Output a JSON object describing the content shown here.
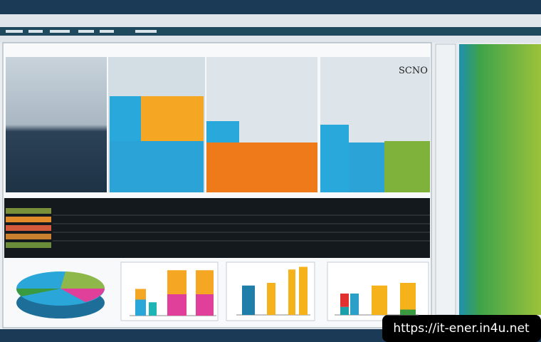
{
  "panel": {
    "badge": "SCNO"
  },
  "watermark": "https://it-ener.in4u.net",
  "mini_charts": [
    {
      "bars": [
        [
          {
            "value": 30,
            "color": "#2aa7d8"
          },
          {
            "value": 20,
            "color": "#f5a623"
          }
        ],
        [
          {
            "value": 25,
            "color": "#1fb5b5"
          }
        ],
        [
          {
            "value": 40,
            "color": "#e0409a"
          },
          {
            "value": 45,
            "color": "#f5a623"
          }
        ],
        [
          {
            "value": 40,
            "color": "#e0409a"
          },
          {
            "value": 45,
            "color": "#f5a623"
          }
        ]
      ]
    },
    {
      "bars": [
        [
          {
            "value": 55,
            "color": "#1f7fa8"
          }
        ],
        [
          {
            "value": 60,
            "color": "#f5b21a"
          }
        ],
        [
          {
            "value": 85,
            "color": "#f5b21a"
          }
        ],
        [
          {
            "value": 90,
            "color": "#f5b21a"
          }
        ]
      ]
    },
    {
      "bars": [
        [
          {
            "value": 15,
            "color": "#1aa0a8"
          },
          {
            "value": 25,
            "color": "#e03030"
          }
        ],
        [
          {
            "value": 40,
            "color": "#2aa0c8"
          }
        ],
        [
          {
            "value": 55,
            "color": "#f5b21a"
          }
        ],
        [
          {
            "value": 10,
            "color": "#3a9a40"
          },
          {
            "value": 50,
            "color": "#f5b21a"
          }
        ]
      ]
    }
  ]
}
